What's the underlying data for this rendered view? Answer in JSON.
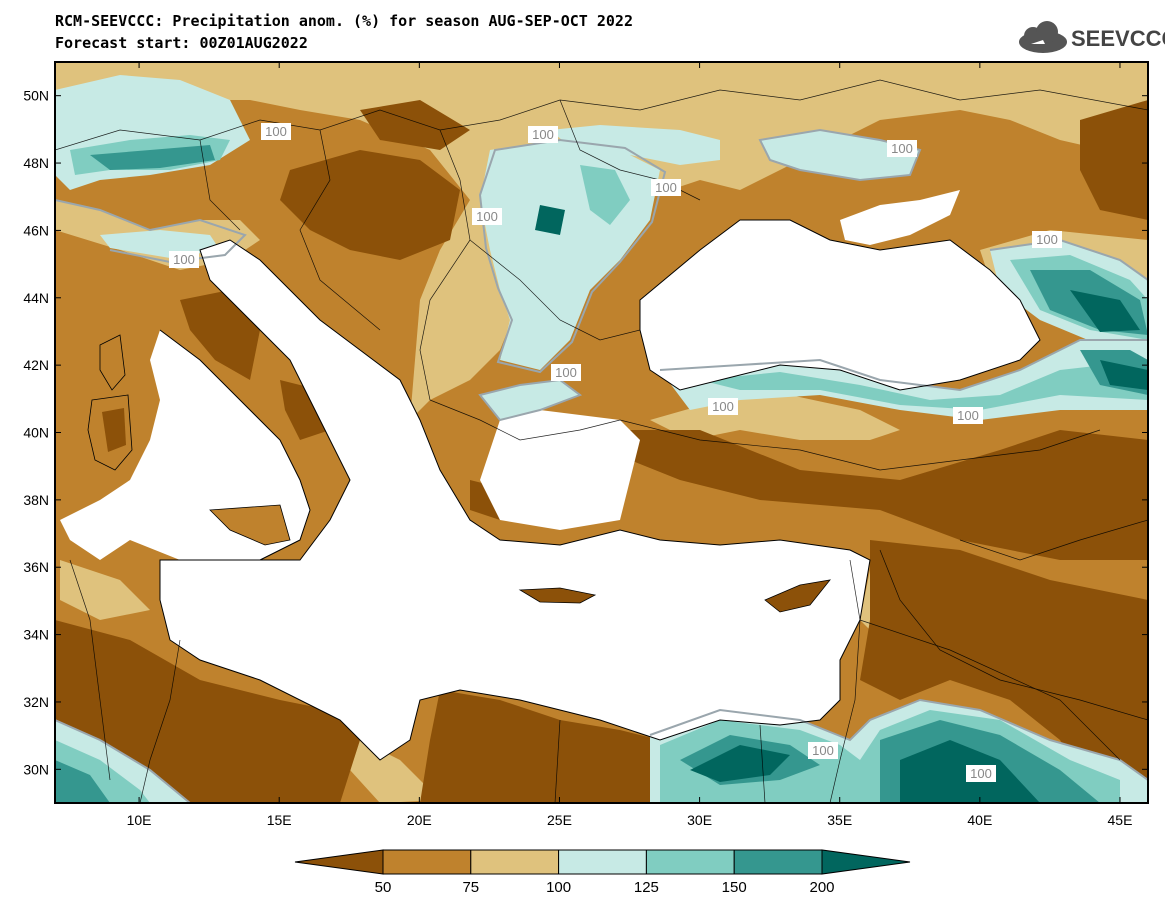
{
  "title": {
    "line1": "RCM-SEEVCCC: Precipitation anom. (%) for season AUG-SEP-OCT 2022",
    "line2": "Forecast start: 00Z01AUG2022"
  },
  "logo": {
    "text": "SEEVCCC",
    "icon": "cloud-icon"
  },
  "axes": {
    "lat_labels": [
      "50N",
      "48N",
      "46N",
      "44N",
      "42N",
      "40N",
      "38N",
      "36N",
      "34N",
      "32N",
      "30N"
    ],
    "lon_labels": [
      "10E",
      "15E",
      "20E",
      "25E",
      "30E",
      "35E",
      "40E",
      "45E"
    ],
    "lat_range": [
      29,
      51
    ],
    "lon_range": [
      7,
      46
    ]
  },
  "contour_labels": [
    "100",
    "100",
    "100",
    "100",
    "100",
    "100",
    "100",
    "100",
    "100",
    "100",
    "100",
    "100"
  ],
  "colorbar": {
    "labels": [
      "50",
      "75",
      "100",
      "125",
      "150",
      "200"
    ],
    "colors": [
      "#8c5109",
      "#bf822d",
      "#dfc27d",
      "#c7eae5",
      "#80cdc1",
      "#35978f",
      "#01665e"
    ]
  },
  "colors": {
    "sea": "#ffffff",
    "dry_strong": "#8c5109",
    "dry": "#bf822d",
    "dry_light": "#dfc27d",
    "wet_light": "#c7eae5",
    "wet": "#80cdc1",
    "wet_strong": "#35978f",
    "wet_extreme": "#01665e"
  }
}
